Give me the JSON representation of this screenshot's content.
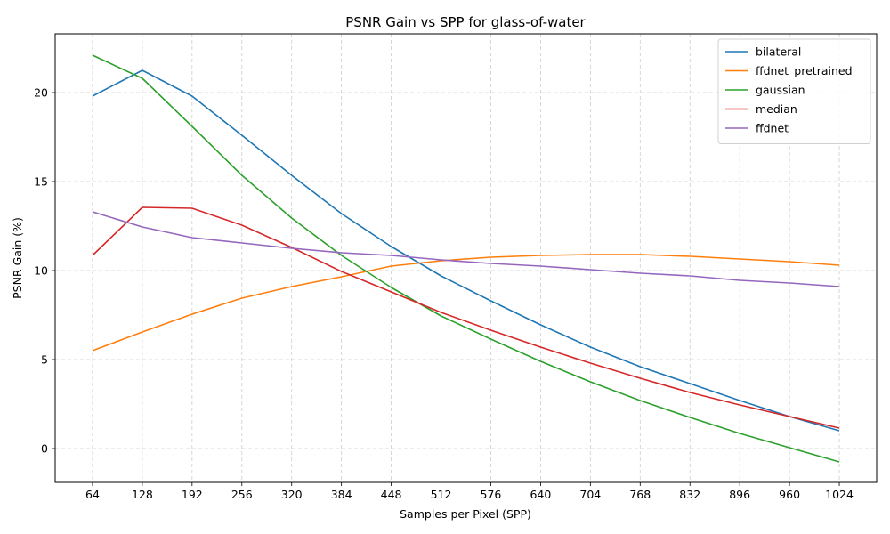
{
  "chart_data": {
    "type": "line",
    "title": "PSNR Gain vs SPP for glass-of-water",
    "xlabel": "Samples per Pixel (SPP)",
    "ylabel": "PSNR Gain (%)",
    "x": [
      64,
      128,
      192,
      256,
      320,
      384,
      448,
      512,
      576,
      640,
      704,
      768,
      832,
      896,
      960,
      1024
    ],
    "xlim": [
      16,
      1072
    ],
    "ylim": [
      -1.9,
      23.3
    ],
    "yticks": [
      0,
      5,
      10,
      15,
      20
    ],
    "grid": true,
    "legend_position": "top-right",
    "series": [
      {
        "name": "bilateral",
        "color": "#1f77b4",
        "values": [
          19.8,
          21.25,
          19.8,
          17.6,
          15.35,
          13.2,
          11.35,
          9.7,
          8.3,
          6.95,
          5.7,
          4.6,
          3.65,
          2.7,
          1.8,
          1.0
        ]
      },
      {
        "name": "ffdnet_pretrained",
        "color": "#ff7f0e",
        "values": [
          5.5,
          6.55,
          7.55,
          8.45,
          9.1,
          9.65,
          10.25,
          10.55,
          10.75,
          10.85,
          10.9,
          10.9,
          10.8,
          10.65,
          10.5,
          10.3
        ]
      },
      {
        "name": "gaussian",
        "color": "#2ca02c",
        "values": [
          22.1,
          20.8,
          18.1,
          15.35,
          12.95,
          10.85,
          9.05,
          7.45,
          6.15,
          4.9,
          3.75,
          2.7,
          1.75,
          0.85,
          0.05,
          -0.75
        ]
      },
      {
        "name": "median",
        "color": "#d62728",
        "values": [
          10.85,
          13.55,
          13.5,
          12.55,
          11.3,
          9.95,
          8.8,
          7.65,
          6.65,
          5.7,
          4.8,
          3.95,
          3.15,
          2.45,
          1.8,
          1.15
        ]
      },
      {
        "name": "ffdnet",
        "color": "#9467bd",
        "values": [
          13.3,
          12.45,
          11.85,
          11.55,
          11.25,
          11.0,
          10.85,
          10.6,
          10.4,
          10.25,
          10.05,
          9.85,
          9.7,
          9.45,
          9.3,
          9.1
        ]
      }
    ]
  }
}
